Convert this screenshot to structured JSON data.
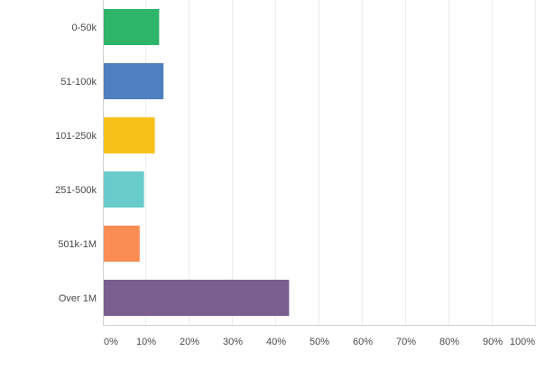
{
  "chart_data": {
    "type": "bar",
    "orientation": "horizontal",
    "categories": [
      "0-50k",
      "51-100k",
      "101-250k",
      "251-500k",
      "501k-1M",
      "Over 1M"
    ],
    "values": [
      13,
      14,
      12,
      9.5,
      8.5,
      43
    ],
    "unit": "%",
    "colors": [
      "#2fb56a",
      "#4f7fbf",
      "#f8c11a",
      "#6acbcc",
      "#f98d54",
      "#7b5e90"
    ],
    "xlim": [
      0,
      100
    ],
    "xticks": [
      "0%",
      "10%",
      "20%",
      "30%",
      "40%",
      "50%",
      "60%",
      "70%",
      "80%",
      "90%",
      "100%"
    ],
    "grid": true,
    "title": "",
    "xlabel": "",
    "ylabel": ""
  }
}
